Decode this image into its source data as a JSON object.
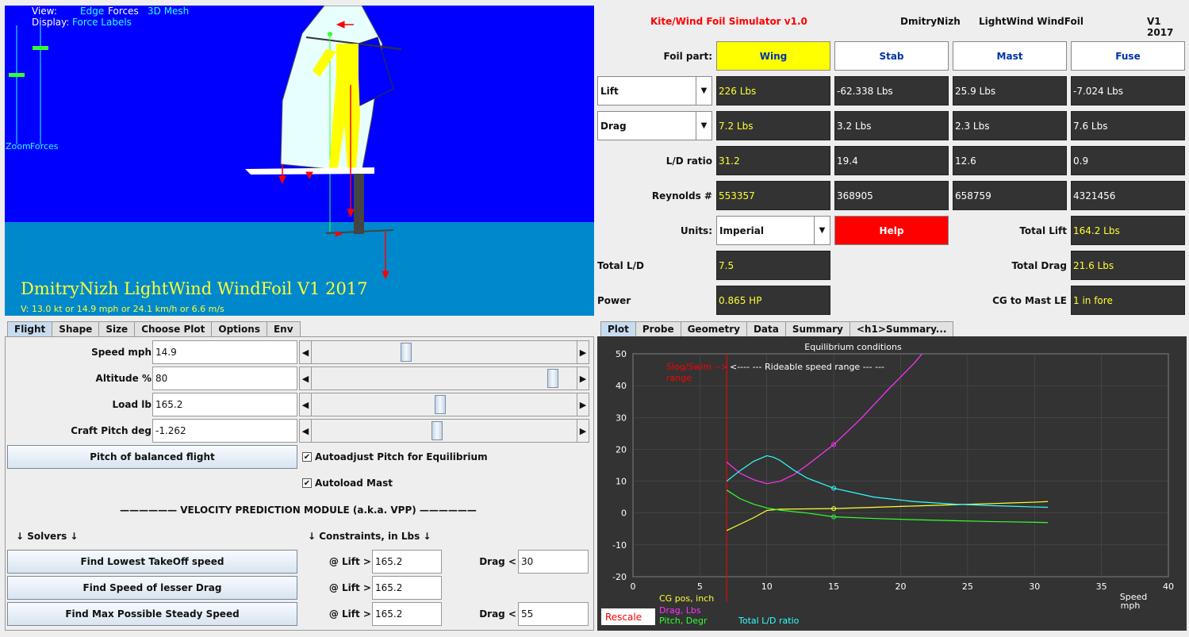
{
  "scene": {
    "view_label": "View:",
    "view_edge": "Edge",
    "view_forces": "Forces",
    "view_3dmesh": "3D Mesh",
    "display_label": "Display:",
    "display_force_labels": "Force Labels",
    "zoom_label": "Zoom",
    "forces_label": "Forces",
    "title": "DmitryNizh LightWind  WindFoil V1 2017",
    "velocity": "V: 13.0 kt or 14.9 mph or 24.1 km/h or 6.6 m/s",
    "colors": {
      "sky": "#0000ff",
      "water": "#0088cc",
      "rider": "#ffff00",
      "accent": "#33ffff"
    }
  },
  "header": {
    "app_title": "Kite/Wind Foil  Simulator v1.0",
    "author": "DmitryNizh",
    "model": "LightWind  WindFoil",
    "version": "V1 2017"
  },
  "parts": {
    "label": "Foil part:",
    "buttons": [
      "Wing",
      "Stab",
      "Mast",
      "Fuse"
    ]
  },
  "rows": {
    "lift_select": "Lift",
    "lift": [
      "226 Lbs",
      "-62.338 Lbs",
      "25.9 Lbs",
      "-7.024 Lbs"
    ],
    "drag_select": "Drag",
    "drag": [
      "7.2 Lbs",
      "3.2 Lbs",
      "2.3 Lbs",
      "7.6 Lbs"
    ],
    "ld_label": "L/D ratio",
    "ld": [
      "31.2",
      "19.4",
      "12.6",
      "0.9"
    ],
    "re_label": "Reynolds #",
    "re": [
      "553357",
      "368905",
      "658759",
      "4321456"
    ]
  },
  "units": {
    "label": "Units:",
    "value": "Imperial",
    "help": "Help"
  },
  "totals": {
    "total_lift_label": "Total Lift",
    "total_lift": "164.2 Lbs",
    "total_ld_label": "Total L/D",
    "total_ld": "7.5",
    "total_drag_label": "Total Drag",
    "total_drag": "21.6 Lbs",
    "power_label": "Power",
    "power": "0.865 HP",
    "cg_label": "CG to Mast LE",
    "cg": "1 in fore"
  },
  "left_tabs": [
    "Flight",
    "Shape",
    "Size",
    "Choose Plot",
    "Options",
    "Env"
  ],
  "flight": {
    "speed_label": "Speed mph",
    "speed": "14.9",
    "speed_pos": 0.35,
    "alt_label": "Altitude %",
    "alt": "80",
    "alt_pos": 0.92,
    "load_label": "Load lb",
    "load": "165.2",
    "load_pos": 0.48,
    "pitch_label": "Craft Pitch deg",
    "pitch": "-1.262",
    "pitch_pos": 0.47,
    "balanced_button": "Pitch of balanced flight",
    "autoadjust": "Autoadjust Pitch for Equilibrium",
    "autoload": "Autoload Mast",
    "check_mark": "✔",
    "vpp_title": "—————— VELOCITY PREDICTION MODULE (a.k.a. VPP) ——————",
    "solvers": "↓    Solvers    ↓",
    "constraints": "↓    Constraints, in Lbs    ↓",
    "solver_buttons": [
      "Find Lowest TakeOff speed",
      "Find Speed of lesser Drag",
      "Find Max Possible Steady Speed"
    ],
    "lift_label": "@ Lift >",
    "drag_label": "Drag <",
    "lift_values": [
      "165.2",
      "165.2",
      "165.2"
    ],
    "drag_values": [
      "30",
      "55"
    ]
  },
  "right_tabs": [
    "Plot",
    "Probe",
    "Geometry",
    "Data",
    "Summary",
    "<h1>Summary..."
  ],
  "chart_data": {
    "type": "line",
    "title": "Equilibrium conditions",
    "xlabel": "Speed mph",
    "xlim": [
      0,
      40
    ],
    "ylim": [
      -20,
      50
    ],
    "x_ticks": [
      0,
      5,
      10,
      15,
      20,
      25,
      30,
      35,
      40
    ],
    "y_ticks": [
      50,
      40,
      30,
      20,
      10,
      0,
      -10,
      -20
    ],
    "annotations": {
      "slog": "Slog/Swim -->",
      "slog2": "range",
      "rideable": "<---- --- Rideable speed range --- ---",
      "slog_x": 7
    },
    "series": [
      {
        "name": "CG pos, inch",
        "color": "#ffff33",
        "x": [
          7,
          8,
          9,
          10,
          11,
          13,
          15,
          18,
          21,
          24,
          27,
          30,
          31
        ],
        "y": [
          -5.5,
          -3.5,
          -1.5,
          0.8,
          1.2,
          1.3,
          1.4,
          1.8,
          2.2,
          2.6,
          3.0,
          3.4,
          3.6
        ]
      },
      {
        "name": "Drag, Lbs",
        "color": "#ff33ff",
        "x": [
          7,
          8,
          9,
          10,
          11,
          12,
          13,
          15,
          17,
          19,
          21,
          22,
          23
        ],
        "y": [
          16,
          12.5,
          10.5,
          9.2,
          10,
          12,
          15,
          21.5,
          29.5,
          38.5,
          47,
          52,
          57
        ]
      },
      {
        "name": "Pitch, Degr",
        "color": "#33ff33",
        "x": [
          7,
          8,
          9,
          10,
          11,
          13,
          15,
          18,
          21,
          24,
          27,
          30,
          31
        ],
        "y": [
          7.2,
          4.5,
          2.8,
          1.6,
          0.9,
          0,
          -1.2,
          -1.7,
          -2.1,
          -2.4,
          -2.7,
          -2.9,
          -3.0
        ]
      },
      {
        "name": "Total L/D ratio",
        "color": "#33ffff",
        "x": [
          7,
          8,
          9,
          10,
          10.5,
          11,
          12,
          13,
          15,
          18,
          21,
          24,
          27,
          30,
          31
        ],
        "y": [
          10,
          13.3,
          16.2,
          18,
          17.5,
          16.5,
          13.5,
          11,
          7.8,
          5,
          3.6,
          2.8,
          2.3,
          1.9,
          1.8
        ]
      }
    ],
    "markers": [
      {
        "series": 0,
        "x": 15,
        "y": 1.4
      },
      {
        "series": 1,
        "x": 15,
        "y": 21.5
      },
      {
        "series": 2,
        "x": 15,
        "y": -1.2
      },
      {
        "series": 3,
        "x": 15,
        "y": 7.8
      }
    ],
    "rescale_label": "Rescale"
  }
}
